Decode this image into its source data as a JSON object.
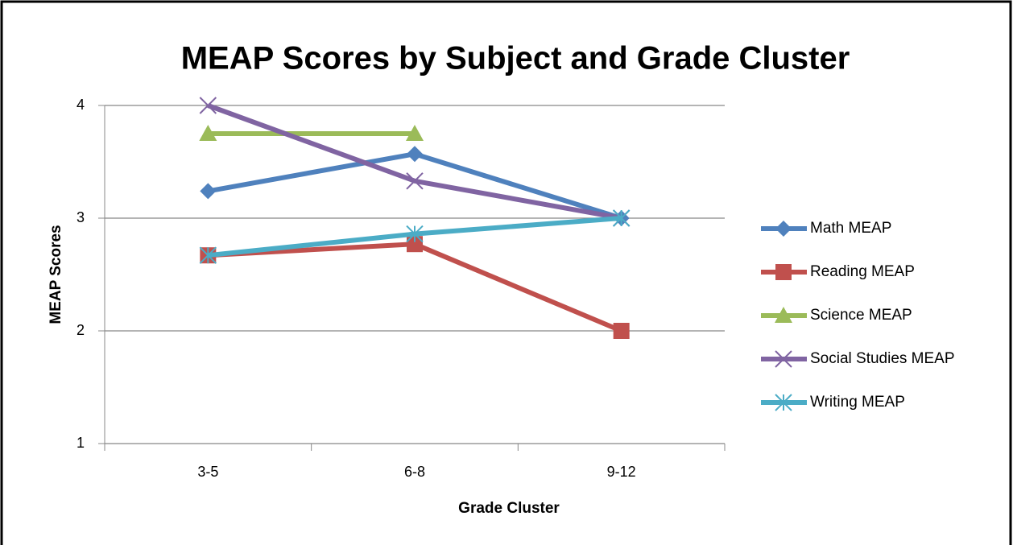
{
  "chart_data": {
    "type": "line",
    "title": "MEAP Scores by Subject and Grade Cluster",
    "xlabel": "Grade Cluster",
    "ylabel": "MEAP Scores",
    "categories": [
      "3-5",
      "6-8",
      "9-12"
    ],
    "series": [
      {
        "name": "Math MEAP",
        "color": "#4f81bd",
        "marker": "diamond",
        "values": [
          3.24,
          3.57,
          3
        ]
      },
      {
        "name": "Reading MEAP",
        "color": "#c0504d",
        "marker": "square",
        "values": [
          2.67,
          2.77,
          2
        ]
      },
      {
        "name": "Science MEAP",
        "color": "#9bbb59",
        "marker": "triangle",
        "values": [
          3.75,
          3.75,
          null
        ]
      },
      {
        "name": "Social Studies MEAP",
        "color": "#8064a2",
        "marker": "x",
        "values": [
          4,
          3.33,
          3
        ]
      },
      {
        "name": "Writing MEAP",
        "color": "#4bacc6",
        "marker": "asterisk",
        "values": [
          2.67,
          2.86,
          3
        ]
      }
    ],
    "ylim": [
      1,
      4
    ],
    "yticks": [
      1,
      2,
      3,
      4
    ],
    "grid": true,
    "legend": "right"
  }
}
